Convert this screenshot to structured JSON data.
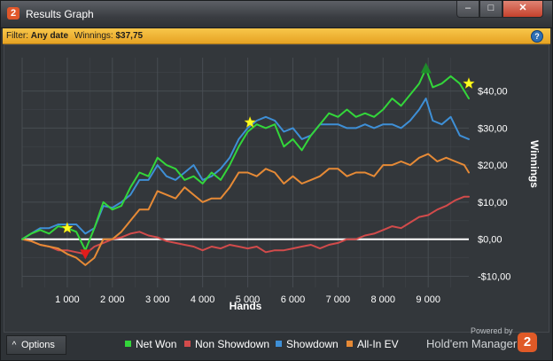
{
  "window": {
    "logo_text": "2",
    "title": "Results Graph",
    "minimize_glyph": "–",
    "maximize_glyph": "□",
    "close_glyph": "✕"
  },
  "filter": {
    "filter_label": "Filter:",
    "filter_value": "Any date",
    "winnings_label": "Winnings:",
    "winnings_value": "$37,75",
    "help_glyph": "?"
  },
  "bottom": {
    "options_glyph": "^",
    "options_label": "Options",
    "powered_by": "Powered by",
    "brand": "Hold'em Manager",
    "brand_logo_text": "2"
  },
  "colors": {
    "net_won": "#33d63a",
    "non_showdown": "#d24b4b",
    "showdown": "#3e8fd6",
    "all_in_ev": "#e68a36",
    "zero_line": "#ffffff",
    "grid": "#4a4f55",
    "background": "#33373b"
  },
  "chart_data": {
    "type": "line",
    "title": "",
    "xlabel": "Hands",
    "ylabel": "Winnings",
    "xlim": [
      0,
      9900
    ],
    "ylim": [
      -13,
      49
    ],
    "grid": true,
    "legend_position": "bottom",
    "y_axis_side": "right",
    "x_ticks": [
      1000,
      2000,
      3000,
      4000,
      5000,
      6000,
      7000,
      8000,
      9000
    ],
    "x_tick_labels": [
      "1 000",
      "2 000",
      "3 000",
      "4 000",
      "5 000",
      "6 000",
      "7 000",
      "8 000",
      "9 000"
    ],
    "y_ticks": [
      -10,
      0,
      10,
      20,
      30,
      40
    ],
    "y_tick_labels": [
      "-$10,00",
      "$0,00",
      "$10,00",
      "$20,00",
      "$30,00",
      "$40,00"
    ],
    "zero_line": true,
    "series": [
      {
        "name": "Net Won",
        "x": [
          0,
          200,
          400,
          600,
          800,
          1000,
          1200,
          1400,
          1600,
          1800,
          2000,
          2200,
          2400,
          2600,
          2800,
          3000,
          3200,
          3400,
          3600,
          3800,
          4000,
          4200,
          4400,
          4600,
          4800,
          5000,
          5200,
          5400,
          5600,
          5800,
          6000,
          6200,
          6400,
          6600,
          6800,
          7000,
          7200,
          7400,
          7600,
          7800,
          8000,
          8200,
          8400,
          8600,
          8800,
          8950,
          9100,
          9300,
          9500,
          9700,
          9900
        ],
        "y": [
          0,
          1.5,
          2.5,
          1.5,
          3.5,
          3,
          2,
          -3,
          3,
          10,
          8,
          9,
          14,
          18,
          17,
          22,
          20,
          19,
          16,
          17,
          15,
          18,
          16,
          20,
          25,
          29,
          31,
          30,
          31,
          25,
          27,
          24,
          28,
          31,
          34,
          33,
          35,
          33,
          34,
          33,
          35,
          38,
          36,
          39,
          42,
          46,
          41,
          42,
          44,
          42,
          38
        ]
      },
      {
        "name": "Non Showdown",
        "x": [
          0,
          200,
          400,
          600,
          800,
          1000,
          1200,
          1400,
          1600,
          1800,
          2000,
          2200,
          2400,
          2600,
          2800,
          3000,
          3200,
          3400,
          3600,
          3800,
          4000,
          4200,
          4400,
          4600,
          4800,
          5000,
          5200,
          5400,
          5600,
          5800,
          6000,
          6200,
          6400,
          6600,
          6800,
          7000,
          7200,
          7400,
          7600,
          7800,
          8000,
          8200,
          8400,
          8600,
          8800,
          9000,
          9200,
          9400,
          9600,
          9800,
          9900
        ],
        "y": [
          0,
          -0.5,
          -1.5,
          -2,
          -3,
          -3,
          -3.5,
          -4,
          -2,
          -1,
          0,
          0.5,
          1.5,
          2,
          1,
          0.5,
          -0.5,
          -1,
          -1.5,
          -2,
          -3,
          -2,
          -2.5,
          -1.5,
          -2,
          -2.5,
          -2,
          -3.5,
          -3,
          -3,
          -2.5,
          -2,
          -1.5,
          -2.5,
          -1.5,
          -1,
          0,
          0,
          1,
          1.5,
          2.5,
          3.5,
          3,
          4.5,
          6,
          6.5,
          8,
          9,
          10.5,
          11.5,
          11.5
        ]
      },
      {
        "name": "Showdown",
        "x": [
          0,
          200,
          400,
          600,
          800,
          1000,
          1200,
          1400,
          1600,
          1800,
          2000,
          2200,
          2400,
          2600,
          2800,
          3000,
          3200,
          3400,
          3600,
          3800,
          4000,
          4200,
          4400,
          4600,
          4800,
          5000,
          5200,
          5400,
          5600,
          5800,
          6000,
          6200,
          6400,
          6600,
          6800,
          7000,
          7200,
          7400,
          7600,
          7800,
          8000,
          8200,
          8400,
          8600,
          8800,
          8950,
          9100,
          9300,
          9500,
          9700,
          9900
        ],
        "y": [
          0,
          1.5,
          3,
          3,
          4,
          4,
          4,
          1.5,
          3,
          9,
          8.5,
          10,
          12,
          16,
          16,
          20,
          17,
          16,
          18,
          20,
          16,
          17,
          19,
          22,
          27,
          30,
          32,
          33,
          32,
          29,
          30,
          27,
          28,
          31,
          31,
          31,
          30,
          30,
          31,
          30,
          31,
          31,
          30,
          32,
          35,
          38,
          32,
          31,
          33,
          28,
          27
        ]
      },
      {
        "name": "All-In EV",
        "x": [
          0,
          200,
          400,
          600,
          800,
          1000,
          1200,
          1400,
          1600,
          1800,
          2000,
          2200,
          2400,
          2600,
          2800,
          3000,
          3200,
          3400,
          3600,
          3800,
          4000,
          4200,
          4400,
          4600,
          4800,
          5000,
          5200,
          5400,
          5600,
          5800,
          6000,
          6200,
          6400,
          6600,
          6800,
          7000,
          7200,
          7400,
          7600,
          7800,
          8000,
          8200,
          8400,
          8600,
          8800,
          9000,
          9200,
          9400,
          9600,
          9800,
          9900
        ],
        "y": [
          0,
          -0.5,
          -1.5,
          -2,
          -2.5,
          -4,
          -5,
          -7,
          -5,
          0,
          0,
          2,
          5,
          8,
          8,
          13,
          12,
          11,
          14,
          12,
          10,
          11,
          11,
          14,
          18,
          18,
          17,
          19,
          18,
          15,
          17,
          15,
          16,
          17,
          19,
          19,
          17,
          18,
          18,
          17,
          20,
          20,
          21,
          20,
          22,
          23,
          21,
          22,
          21,
          20,
          18
        ]
      }
    ],
    "markers": [
      {
        "type": "star",
        "color": "#ffff22",
        "x": 1000,
        "y": 3
      },
      {
        "type": "triangle-down",
        "color": "#e21c1c",
        "x": 1400,
        "y": -4
      },
      {
        "type": "star",
        "color": "#ffff22",
        "x": 5050,
        "y": 31.5
      },
      {
        "type": "triangle-up",
        "color": "#1e8a2a",
        "x": 8950,
        "y": 46
      },
      {
        "type": "star",
        "color": "#ffff22",
        "x": 9900,
        "y": 42
      }
    ]
  }
}
